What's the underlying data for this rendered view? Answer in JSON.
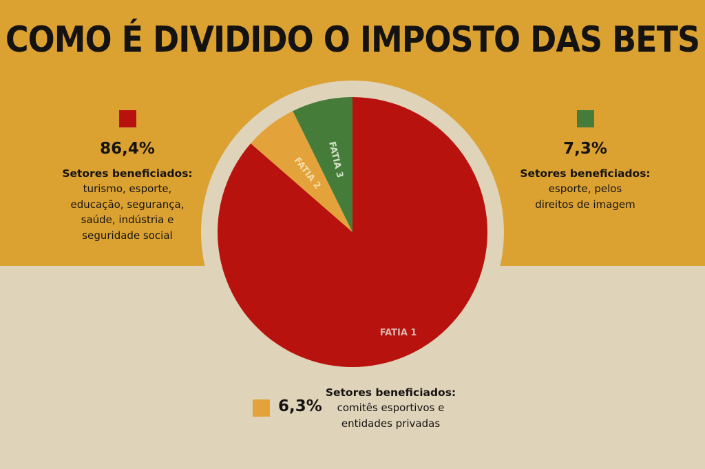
{
  "title": "COMO É DIVIDIDO O IMPOSTO DAS BETS",
  "colors": {
    "top_band": "#dba232",
    "bottom_band": "#dfd3b9",
    "slice1": "#b8120e",
    "slice2": "#e3a23a",
    "slice3": "#467c3a",
    "text": "#151212"
  },
  "chart_data": {
    "type": "pie",
    "title": "COMO É DIVIDIDO O IMPOSTO DAS BETS",
    "categories": [
      "FATIA 1",
      "FATIA 2",
      "FATIA 3"
    ],
    "values": [
      86.4,
      6.3,
      7.3
    ],
    "value_labels": [
      "86,4%",
      "6,3%",
      "7,3%"
    ],
    "start": "12 o'clock, clockwise: FATIA 1, then FATIA 2, then FATIA 3",
    "legend_placement": "around the pie (left, bottom, right)"
  },
  "legend": {
    "slice1": {
      "pct": "86,4%",
      "title": "Setores beneficiados:",
      "lines": [
        "turismo, esporte,",
        "educação, segurança,",
        "saúde, indústria e",
        "seguridade social"
      ]
    },
    "slice3": {
      "pct": "7,3%",
      "title": "Setores beneficiados:",
      "lines": [
        "esporte, pelos",
        "direitos de imagem"
      ]
    },
    "slice2": {
      "pct": "6,3%",
      "title": "Setores beneficiados:",
      "lines": [
        "comitês esportivos e",
        "entidades privadas"
      ]
    }
  }
}
